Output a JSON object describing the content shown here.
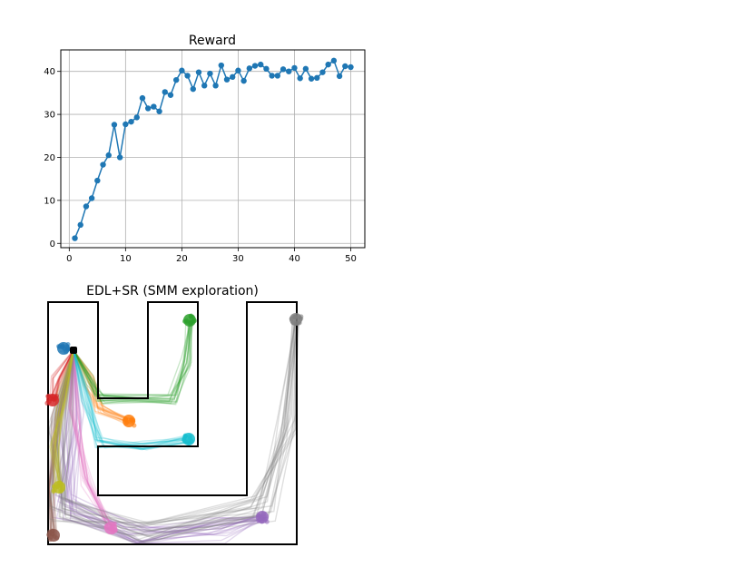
{
  "chart_data": [
    {
      "type": "line",
      "title": "Reward",
      "xlabel": "",
      "ylabel": "",
      "xlim": [
        -1.5,
        52.5
      ],
      "ylim": [
        -1,
        45
      ],
      "xticks": [
        0,
        10,
        20,
        30,
        40,
        50
      ],
      "yticks": [
        0,
        10,
        20,
        30,
        40
      ],
      "grid": true,
      "markers": true,
      "color": "#1f77b4",
      "series": [
        {
          "x": [
            1,
            2,
            3,
            4,
            5,
            6,
            7,
            8,
            9,
            10,
            11,
            12,
            13,
            14,
            15,
            16,
            17,
            18,
            19,
            20,
            21,
            22,
            23,
            24,
            25,
            26,
            27,
            28,
            29,
            30,
            31,
            32,
            33,
            34,
            35,
            36,
            37,
            38,
            39,
            40,
            41,
            42,
            43,
            44,
            45,
            46,
            47,
            48,
            49,
            50
          ],
          "values": [
            1.2,
            4.3,
            8.6,
            10.5,
            14.6,
            18.3,
            20.5,
            27.6,
            20.0,
            27.7,
            28.3,
            29.3,
            33.8,
            31.4,
            31.8,
            30.7,
            35.2,
            34.5,
            38.0,
            40.2,
            39.0,
            35.9,
            39.8,
            36.7,
            39.5,
            36.7,
            41.4,
            38.1,
            38.7,
            40.2,
            37.8,
            40.7,
            41.3,
            41.6,
            40.6,
            39.0,
            39.0,
            40.5,
            40.0,
            40.8,
            38.4,
            40.6,
            38.3,
            38.5,
            39.8,
            41.6,
            42.5,
            38.9,
            41.2,
            41.0
          ]
        }
      ]
    },
    {
      "type": "scatter",
      "title": "EDL+SR (SMM exploration)",
      "axes_visible": false,
      "grid": false,
      "start_color": "#000000",
      "series": [
        {
          "color": "#1f77b4"
        },
        {
          "color": "#ff7f0e"
        },
        {
          "color": "#2ca02c"
        },
        {
          "color": "#d62728"
        },
        {
          "color": "#9467bd"
        },
        {
          "color": "#8c564b"
        },
        {
          "color": "#e377c2"
        },
        {
          "color": "#7f7f7f"
        },
        {
          "color": "#bcbd22"
        },
        {
          "color": "#17becf"
        }
      ]
    }
  ]
}
